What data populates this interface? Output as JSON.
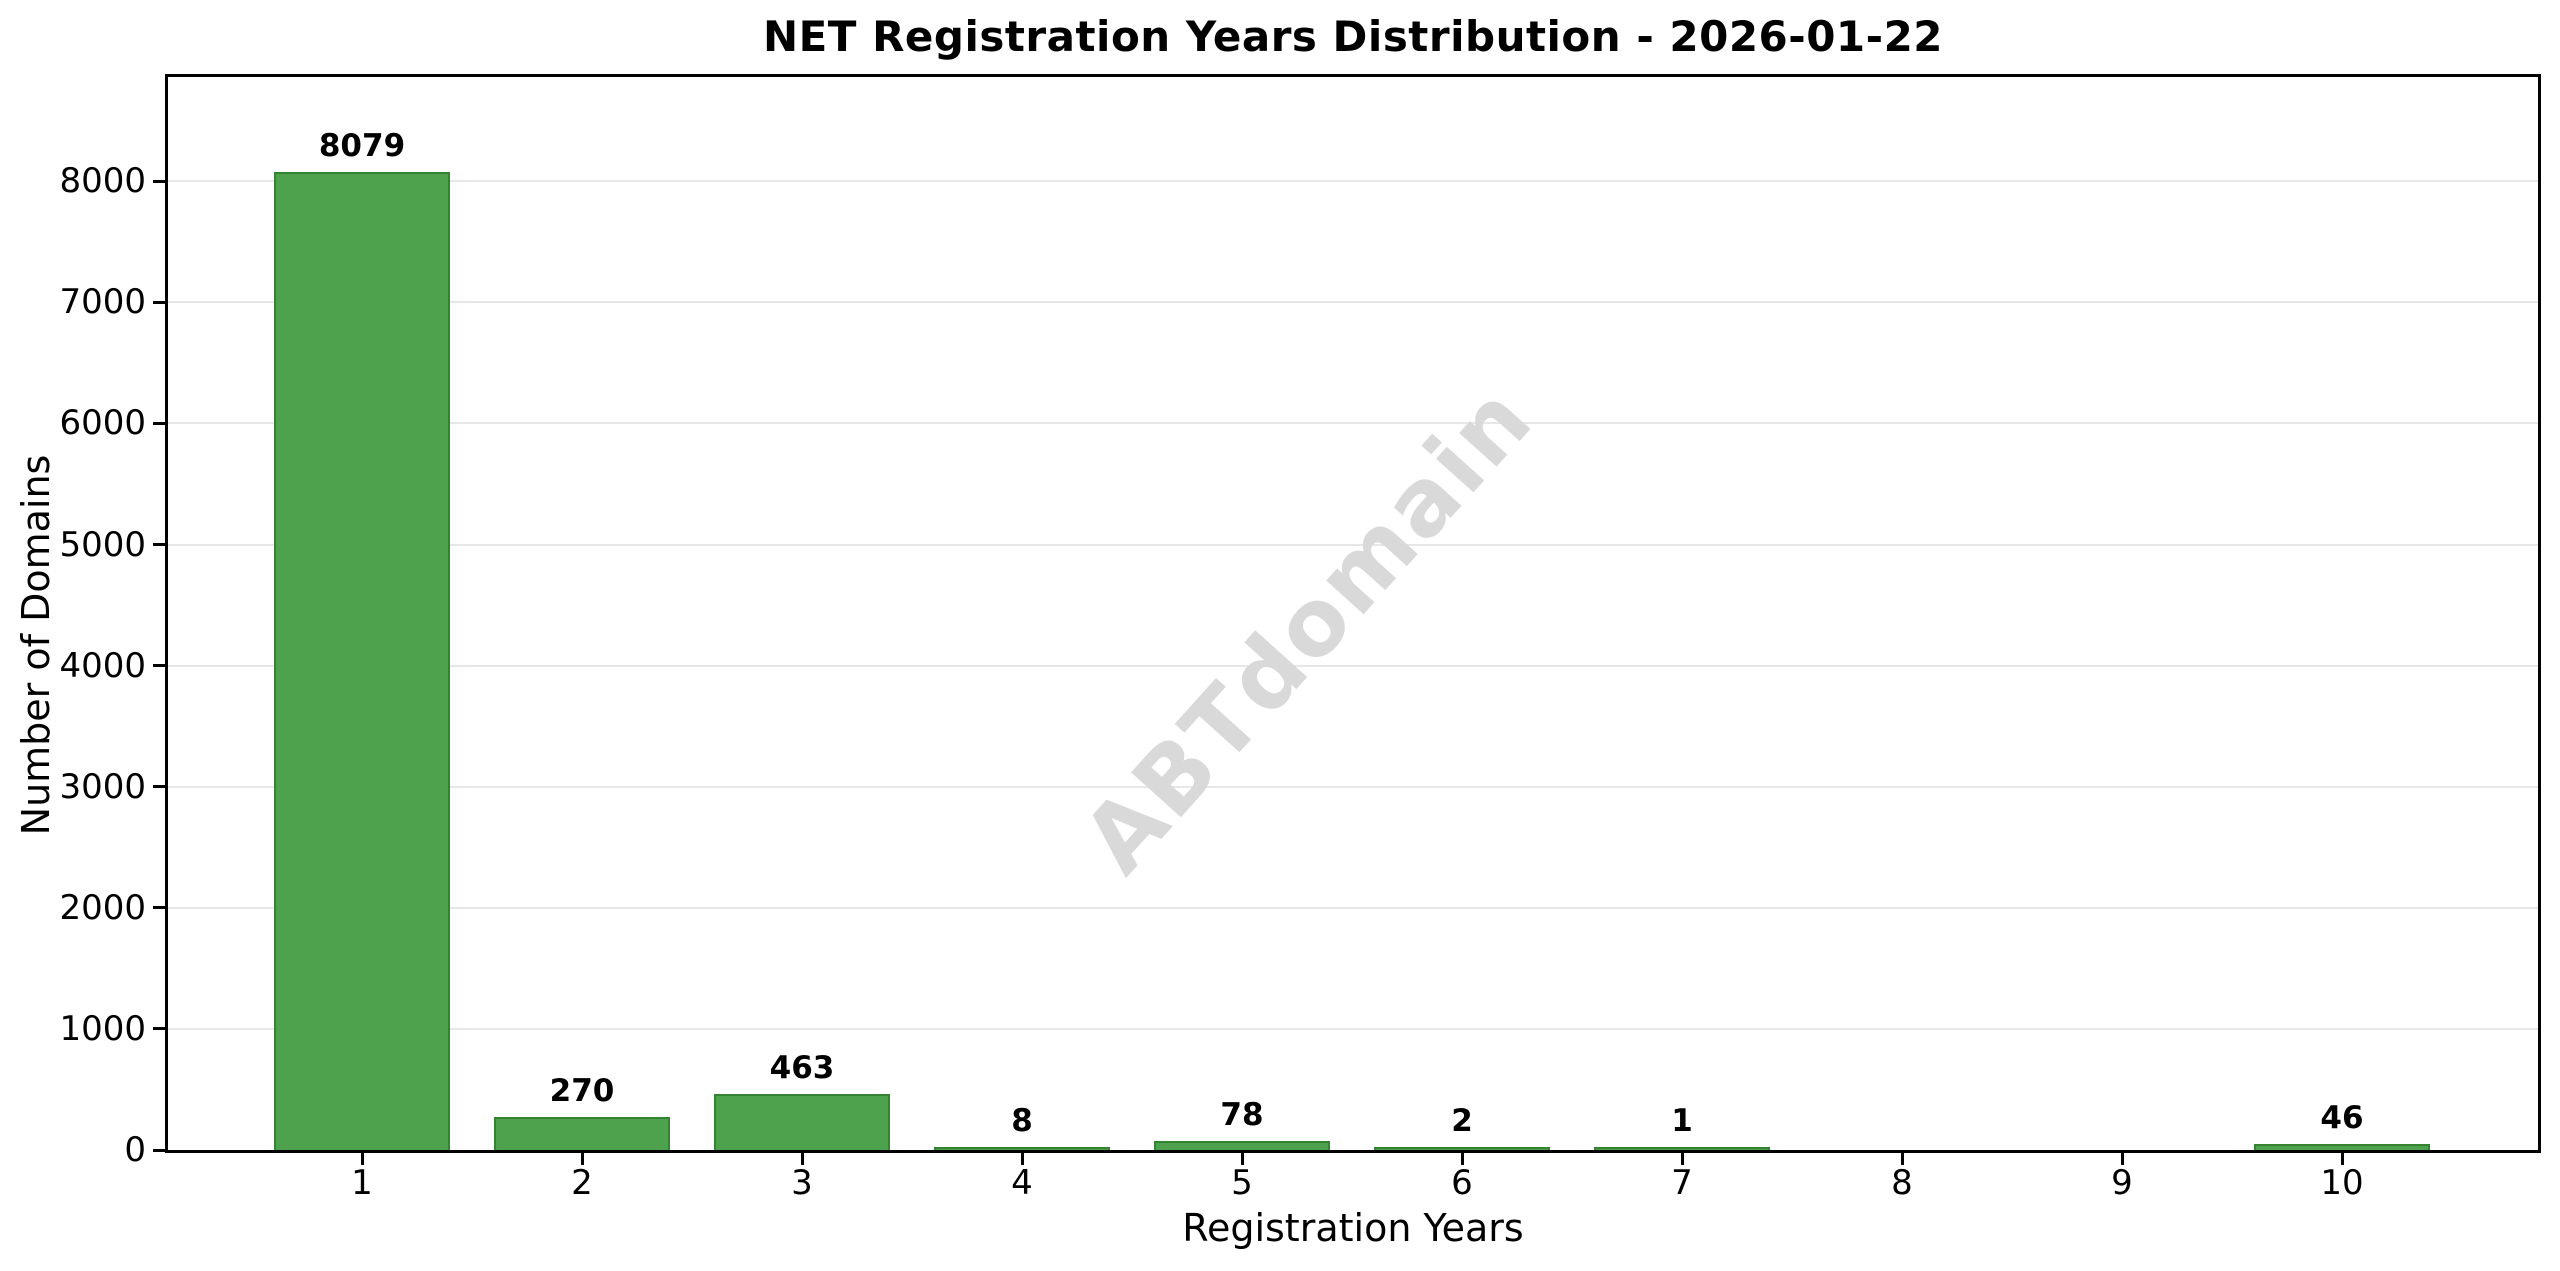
{
  "chart_data": {
    "type": "bar",
    "title": "NET Registration Years Distribution - 2026-01-22",
    "xlabel": "Registration Years",
    "ylabel": "Number of Domains",
    "categories": [
      "1",
      "2",
      "3",
      "4",
      "5",
      "6",
      "7",
      "8",
      "9",
      "10"
    ],
    "values": [
      8079,
      270,
      463,
      8,
      78,
      2,
      1,
      0,
      0,
      46
    ],
    "bar_labels": [
      "8079",
      "270",
      "463",
      "8",
      "78",
      "2",
      "1",
      "",
      "",
      "46"
    ],
    "yticks": [
      0,
      1000,
      2000,
      3000,
      4000,
      5000,
      6000,
      7000,
      8000
    ],
    "ylim": [
      0,
      8860
    ],
    "grid": "horizontal",
    "legend": "none",
    "watermark": "ABTdomain",
    "colors": {
      "bar_fill": "#4ea24e",
      "bar_edge": "#338333",
      "gridline": "#e7e7e7",
      "spine": "#000000",
      "watermark": "#d9d9d9",
      "text": "#000000"
    }
  }
}
